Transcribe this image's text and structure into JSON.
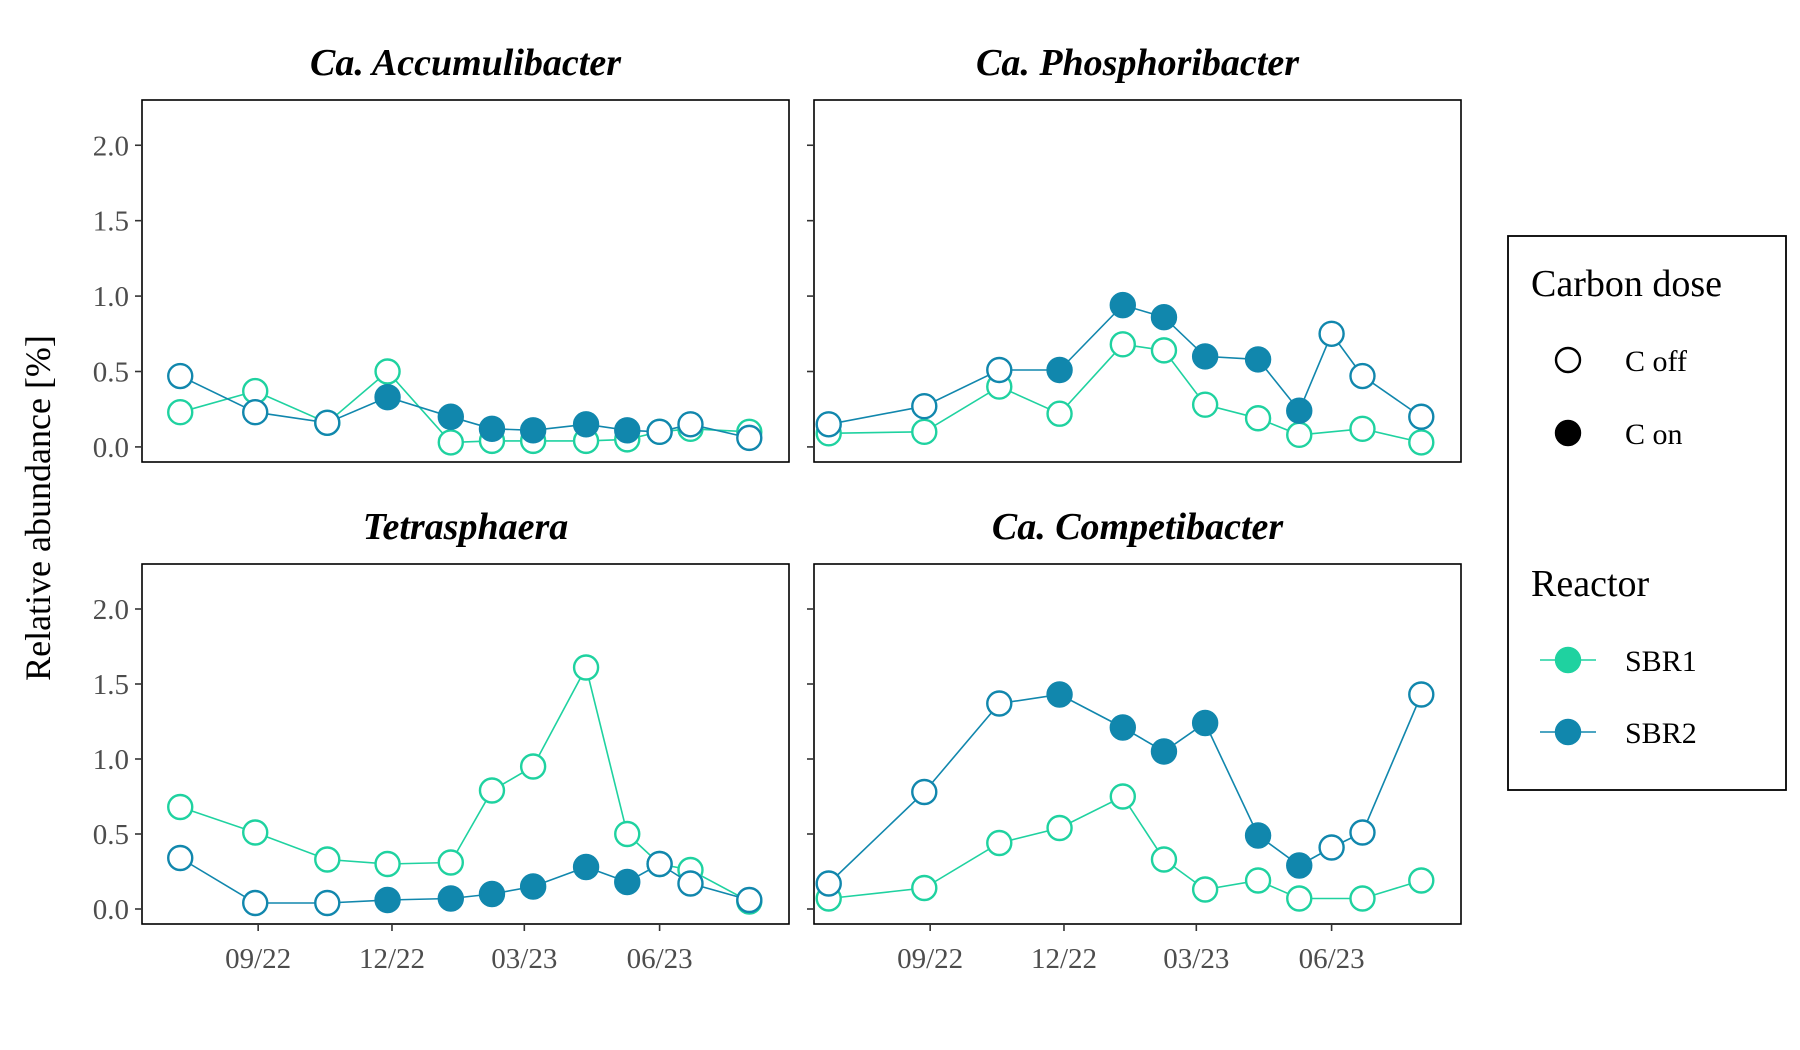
{
  "chart_data": {
    "type": "line",
    "ylabel": "Relative abundance [%]",
    "ylim": [
      -0.1,
      2.3
    ],
    "y_ticks": [
      0.0,
      0.5,
      1.0,
      1.5,
      2.0
    ],
    "y_tick_labels": [
      "0.0",
      "0.5",
      "1.0",
      "1.5",
      "2.0"
    ],
    "x_tick_labels": [
      "09/22",
      "12/22",
      "03/23",
      "06/23"
    ],
    "x_tick_dates": [
      "2022-09-01",
      "2022-12-01",
      "2023-03-01",
      "2023-06-01"
    ],
    "xlim": [
      "2022-06-14",
      "2023-08-28"
    ],
    "grid": false,
    "colors": {
      "SBR1": "#1fd2a0",
      "SBR2": "#1187ad"
    },
    "legend": {
      "position": "right",
      "carbon_title": "Carbon dose",
      "carbon_items": [
        "C off",
        "C on"
      ],
      "reactor_title": "Reactor",
      "reactor_items": [
        "SBR1",
        "SBR2"
      ]
    },
    "panels": [
      {
        "title": "Ca. Accumulibacter",
        "series": [
          {
            "name": "SBR1",
            "points": [
              {
                "x": "2022-07-10",
                "y": 0.23,
                "c": "off"
              },
              {
                "x": "2022-08-30",
                "y": 0.37,
                "c": "off"
              },
              {
                "x": "2022-10-18",
                "y": 0.16,
                "c": "off"
              },
              {
                "x": "2022-11-28",
                "y": 0.5,
                "c": "off"
              },
              {
                "x": "2023-01-10",
                "y": 0.03,
                "c": "off"
              },
              {
                "x": "2023-02-07",
                "y": 0.04,
                "c": "off"
              },
              {
                "x": "2023-03-07",
                "y": 0.04,
                "c": "off"
              },
              {
                "x": "2023-04-12",
                "y": 0.04,
                "c": "off"
              },
              {
                "x": "2023-05-10",
                "y": 0.05,
                "c": "off"
              },
              {
                "x": "2023-06-01",
                "y": 0.1,
                "c": "off"
              },
              {
                "x": "2023-06-22",
                "y": 0.12,
                "c": "off"
              },
              {
                "x": "2023-08-01",
                "y": 0.1,
                "c": "off"
              }
            ]
          },
          {
            "name": "SBR2",
            "points": [
              {
                "x": "2022-07-10",
                "y": 0.47,
                "c": "off"
              },
              {
                "x": "2022-08-30",
                "y": 0.23,
                "c": "off"
              },
              {
                "x": "2022-10-18",
                "y": 0.16,
                "c": "off"
              },
              {
                "x": "2022-11-28",
                "y": 0.33,
                "c": "on"
              },
              {
                "x": "2023-01-10",
                "y": 0.2,
                "c": "on"
              },
              {
                "x": "2023-02-07",
                "y": 0.12,
                "c": "on"
              },
              {
                "x": "2023-03-07",
                "y": 0.11,
                "c": "on"
              },
              {
                "x": "2023-04-12",
                "y": 0.15,
                "c": "on"
              },
              {
                "x": "2023-05-10",
                "y": 0.11,
                "c": "on"
              },
              {
                "x": "2023-06-01",
                "y": 0.1,
                "c": "off"
              },
              {
                "x": "2023-06-22",
                "y": 0.15,
                "c": "off"
              },
              {
                "x": "2023-08-01",
                "y": 0.06,
                "c": "off"
              }
            ]
          }
        ]
      },
      {
        "title": "Ca. Phosphoribacter",
        "series": [
          {
            "name": "SBR1",
            "points": [
              {
                "x": "2022-06-24",
                "y": 0.09,
                "c": "off"
              },
              {
                "x": "2022-08-28",
                "y": 0.1,
                "c": "off"
              },
              {
                "x": "2022-10-18",
                "y": 0.4,
                "c": "off"
              },
              {
                "x": "2022-11-28",
                "y": 0.22,
                "c": "off"
              },
              {
                "x": "2023-01-10",
                "y": 0.68,
                "c": "off"
              },
              {
                "x": "2023-02-07",
                "y": 0.64,
                "c": "off"
              },
              {
                "x": "2023-03-07",
                "y": 0.28,
                "c": "off"
              },
              {
                "x": "2023-04-12",
                "y": 0.19,
                "c": "off"
              },
              {
                "x": "2023-05-10",
                "y": 0.08,
                "c": "off"
              },
              {
                "x": "2023-06-22",
                "y": 0.12,
                "c": "off"
              },
              {
                "x": "2023-08-01",
                "y": 0.03,
                "c": "off"
              }
            ]
          },
          {
            "name": "SBR2",
            "points": [
              {
                "x": "2022-06-24",
                "y": 0.15,
                "c": "off"
              },
              {
                "x": "2022-08-28",
                "y": 0.27,
                "c": "off"
              },
              {
                "x": "2022-10-18",
                "y": 0.51,
                "c": "off"
              },
              {
                "x": "2022-11-28",
                "y": 0.51,
                "c": "on"
              },
              {
                "x": "2023-01-10",
                "y": 0.94,
                "c": "on"
              },
              {
                "x": "2023-02-07",
                "y": 0.86,
                "c": "on"
              },
              {
                "x": "2023-03-07",
                "y": 0.6,
                "c": "on"
              },
              {
                "x": "2023-04-12",
                "y": 0.58,
                "c": "on"
              },
              {
                "x": "2023-05-10",
                "y": 0.24,
                "c": "on"
              },
              {
                "x": "2023-06-01",
                "y": 0.75,
                "c": "off"
              },
              {
                "x": "2023-06-22",
                "y": 0.47,
                "c": "off"
              },
              {
                "x": "2023-08-01",
                "y": 0.2,
                "c": "off"
              }
            ]
          }
        ]
      },
      {
        "title": "Tetrasphaera",
        "series": [
          {
            "name": "SBR1",
            "points": [
              {
                "x": "2022-07-10",
                "y": 0.68,
                "c": "off"
              },
              {
                "x": "2022-08-30",
                "y": 0.51,
                "c": "off"
              },
              {
                "x": "2022-10-18",
                "y": 0.33,
                "c": "off"
              },
              {
                "x": "2022-11-28",
                "y": 0.3,
                "c": "off"
              },
              {
                "x": "2023-01-10",
                "y": 0.31,
                "c": "off"
              },
              {
                "x": "2023-02-07",
                "y": 0.79,
                "c": "off"
              },
              {
                "x": "2023-03-07",
                "y": 0.95,
                "c": "off"
              },
              {
                "x": "2023-04-12",
                "y": 1.61,
                "c": "off"
              },
              {
                "x": "2023-05-10",
                "y": 0.5,
                "c": "off"
              },
              {
                "x": "2023-06-01",
                "y": 0.3,
                "c": "off"
              },
              {
                "x": "2023-06-22",
                "y": 0.26,
                "c": "off"
              },
              {
                "x": "2023-08-01",
                "y": 0.05,
                "c": "off"
              }
            ]
          },
          {
            "name": "SBR2",
            "points": [
              {
                "x": "2022-07-10",
                "y": 0.34,
                "c": "off"
              },
              {
                "x": "2022-08-30",
                "y": 0.04,
                "c": "off"
              },
              {
                "x": "2022-10-18",
                "y": 0.04,
                "c": "off"
              },
              {
                "x": "2022-11-28",
                "y": 0.06,
                "c": "on"
              },
              {
                "x": "2023-01-10",
                "y": 0.07,
                "c": "on"
              },
              {
                "x": "2023-02-07",
                "y": 0.1,
                "c": "on"
              },
              {
                "x": "2023-03-07",
                "y": 0.15,
                "c": "on"
              },
              {
                "x": "2023-04-12",
                "y": 0.28,
                "c": "on"
              },
              {
                "x": "2023-05-10",
                "y": 0.18,
                "c": "on"
              },
              {
                "x": "2023-06-01",
                "y": 0.3,
                "c": "off"
              },
              {
                "x": "2023-06-22",
                "y": 0.17,
                "c": "off"
              },
              {
                "x": "2023-08-01",
                "y": 0.06,
                "c": "off"
              }
            ]
          }
        ]
      },
      {
        "title": "Ca. Competibacter",
        "series": [
          {
            "name": "SBR1",
            "points": [
              {
                "x": "2022-06-24",
                "y": 0.07,
                "c": "off"
              },
              {
                "x": "2022-08-28",
                "y": 0.14,
                "c": "off"
              },
              {
                "x": "2022-10-18",
                "y": 0.44,
                "c": "off"
              },
              {
                "x": "2022-11-28",
                "y": 0.54,
                "c": "off"
              },
              {
                "x": "2023-01-10",
                "y": 0.75,
                "c": "off"
              },
              {
                "x": "2023-02-07",
                "y": 0.33,
                "c": "off"
              },
              {
                "x": "2023-03-07",
                "y": 0.13,
                "c": "off"
              },
              {
                "x": "2023-04-12",
                "y": 0.19,
                "c": "off"
              },
              {
                "x": "2023-05-10",
                "y": 0.07,
                "c": "off"
              },
              {
                "x": "2023-06-22",
                "y": 0.07,
                "c": "off"
              },
              {
                "x": "2023-08-01",
                "y": 0.19,
                "c": "off"
              }
            ]
          },
          {
            "name": "SBR2",
            "points": [
              {
                "x": "2022-06-24",
                "y": 0.17,
                "c": "off"
              },
              {
                "x": "2022-08-28",
                "y": 0.78,
                "c": "off"
              },
              {
                "x": "2022-10-18",
                "y": 1.37,
                "c": "off"
              },
              {
                "x": "2022-11-28",
                "y": 1.43,
                "c": "on"
              },
              {
                "x": "2023-01-10",
                "y": 1.21,
                "c": "on"
              },
              {
                "x": "2023-02-07",
                "y": 1.05,
                "c": "on"
              },
              {
                "x": "2023-03-07",
                "y": 1.24,
                "c": "on"
              },
              {
                "x": "2023-04-12",
                "y": 0.49,
                "c": "on"
              },
              {
                "x": "2023-05-10",
                "y": 0.29,
                "c": "on"
              },
              {
                "x": "2023-06-01",
                "y": 0.41,
                "c": "off"
              },
              {
                "x": "2023-06-22",
                "y": 0.51,
                "c": "off"
              },
              {
                "x": "2023-08-01",
                "y": 1.43,
                "c": "off"
              }
            ]
          }
        ]
      }
    ]
  }
}
